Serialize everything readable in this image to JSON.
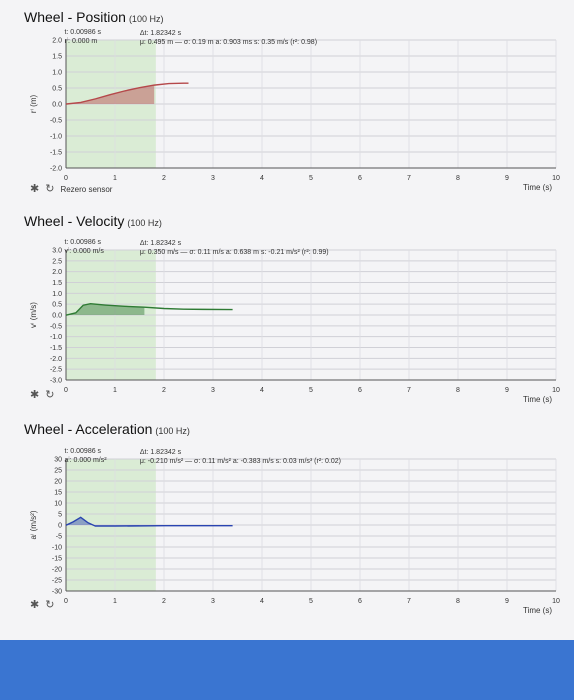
{
  "colors": {
    "position": "#b5484a",
    "velocity": "#2f7b34",
    "acceleration": "#2a44b0",
    "region": "#c8e6c0",
    "bar": "#3a75d1"
  },
  "time_label": "Time (s)",
  "panels": [
    {
      "key": "position",
      "title": "Wheel - Position",
      "rate": "(100 Hz)",
      "ylabel": "rⁱ (m)",
      "rezero": "Rezero sensor",
      "info": {
        "t": "t: 0.00986 s",
        "v": "rⁱ: 0.000 m",
        "dt": "Δt: 1.82342 s",
        "stats": "μ: 0.495 m — σ: 0.19 m  a: 0.903 ms  s: 0.35 m/s (r²: 0.98)"
      }
    },
    {
      "key": "velocity",
      "title": "Wheel - Velocity",
      "rate": "(100 Hz)",
      "ylabel": "vⁱ (m/s)",
      "rezero": "",
      "info": {
        "t": "t: 0.00986 s",
        "v": "vⁱ: 0.000 m/s",
        "dt": "Δt: 1.82342 s",
        "stats": "μ: 0.350 m/s — σ: 0.11 m/s  a: 0.638 m  s: -0.21 m/s² (r²: 0.99)"
      }
    },
    {
      "key": "acceleration",
      "title": "Wheel - Acceleration",
      "rate": "(100 Hz)",
      "ylabel": "aⁱ (m/s²)",
      "rezero": "",
      "info": {
        "t": "t: 0.00986 s",
        "v": "aⁱ: 0.000 m/s²",
        "dt": "Δt: 1.82342 s",
        "stats": "μ: -0.210 m/s² — σ: 0.11 m/s²  a: -0.383 m/s  s: 0.03 m/s³ (r²: 0.02)"
      }
    }
  ],
  "chart_data": [
    {
      "type": "line",
      "title": "Wheel - Position",
      "xlabel": "Time (s)",
      "ylabel": "rⁱ (m)",
      "xlim": [
        0,
        10
      ],
      "ylim": [
        -2.0,
        2.0
      ],
      "xticks": [
        0,
        1,
        2,
        3,
        4,
        5,
        6,
        7,
        8,
        9,
        10
      ],
      "yticks": [
        2.0,
        1.5,
        1.0,
        0.5,
        0.0,
        -0.5,
        -1.0,
        -1.5,
        -2.0
      ],
      "ytick_labels": [
        "2.0",
        "1.5",
        "1.0",
        "0.5",
        "0.0",
        "-0.5",
        "-1.0",
        "-1.5",
        "-2.0"
      ],
      "region": [
        0.00986,
        1.83328
      ],
      "x": [
        0.0,
        0.0099,
        0.3,
        0.6,
        0.9,
        1.2,
        1.5,
        1.8,
        2.1,
        2.4,
        2.5
      ],
      "y": [
        0.0,
        0.0,
        0.05,
        0.16,
        0.29,
        0.41,
        0.51,
        0.59,
        0.64,
        0.65,
        0.65
      ]
    },
    {
      "type": "line",
      "title": "Wheel - Velocity",
      "xlabel": "Time (s)",
      "ylabel": "vⁱ (m/s)",
      "xlim": [
        0,
        10
      ],
      "ylim": [
        -3.0,
        3.0
      ],
      "xticks": [
        0,
        1,
        2,
        3,
        4,
        5,
        6,
        7,
        8,
        9,
        10
      ],
      "yticks": [
        3.0,
        2.5,
        2.0,
        1.5,
        1.0,
        0.5,
        0.0,
        -0.5,
        -1.0,
        -1.5,
        -2.0,
        -2.5,
        -3.0
      ],
      "ytick_labels": [
        "3.0",
        "2.5",
        "2.0",
        "1.5",
        "1.0",
        "0.5",
        "0.0",
        "-0.5",
        "-1.0",
        "-1.5",
        "-2.0",
        "-2.5",
        "-3.0"
      ],
      "region": [
        0.00986,
        1.83328
      ],
      "x": [
        0.0,
        0.0099,
        0.2,
        0.35,
        0.5,
        0.8,
        1.2,
        1.6,
        2.0,
        2.4,
        2.8,
        3.4
      ],
      "y": [
        0.0,
        0.0,
        0.1,
        0.45,
        0.52,
        0.46,
        0.4,
        0.36,
        0.3,
        0.27,
        0.26,
        0.25
      ]
    },
    {
      "type": "line",
      "title": "Wheel - Acceleration",
      "xlabel": "Time (s)",
      "ylabel": "aⁱ (m/s²)",
      "xlim": [
        0,
        10
      ],
      "ylim": [
        -30,
        30
      ],
      "xticks": [
        0,
        1,
        2,
        3,
        4,
        5,
        6,
        7,
        8,
        9,
        10
      ],
      "yticks": [
        30,
        25,
        20,
        15,
        10,
        5,
        0,
        -5,
        -10,
        -15,
        -20,
        -25,
        -30
      ],
      "ytick_labels": [
        "30",
        "25",
        "20",
        "15",
        "10",
        "5",
        "0",
        "-5",
        "-10",
        "-15",
        "-20",
        "-25",
        "-30"
      ],
      "region": [
        0.00986,
        1.83328
      ],
      "x": [
        0.0,
        0.0099,
        0.15,
        0.3,
        0.45,
        0.6,
        1.0,
        1.5,
        2.0,
        2.5,
        3.0,
        3.4
      ],
      "y": [
        0.0,
        0.0,
        1.5,
        3.5,
        1.0,
        -0.5,
        -0.5,
        -0.4,
        -0.3,
        -0.3,
        -0.3,
        -0.3
      ]
    }
  ]
}
